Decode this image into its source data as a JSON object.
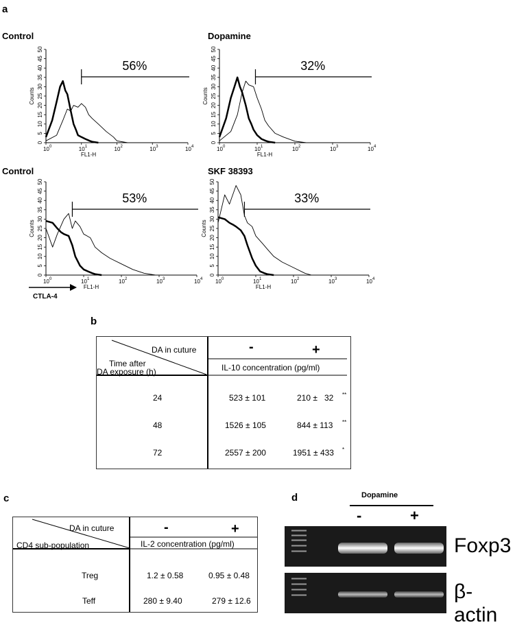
{
  "figure": {
    "panel_a_letter": "a",
    "panel_b_letter": "b",
    "panel_c_letter": "c",
    "panel_d_letter": "d"
  },
  "panel_a": {
    "axis_arrow_label": "CTLA-4",
    "histograms": [
      {
        "title": "Control",
        "percent": "56%",
        "ylabel": "Counts",
        "xlabel": "FL1-H",
        "yticks": [
          "0",
          "5",
          "10",
          "15",
          "20",
          "25",
          "30",
          "35",
          "40",
          "45",
          "50"
        ],
        "xticks": [
          "10",
          "10",
          "10",
          "10",
          "10"
        ],
        "xexps": [
          "0",
          "1",
          "2",
          "3",
          "4"
        ]
      },
      {
        "title": "Dopamine",
        "percent": "32%",
        "ylabel": "Counts",
        "xlabel": "FL1-H",
        "yticks": [
          "0",
          "5",
          "10",
          "15",
          "20",
          "25",
          "30",
          "35",
          "40",
          "45",
          "50"
        ],
        "xticks": [
          "10",
          "10",
          "10",
          "10",
          "10"
        ],
        "xexps": [
          "0",
          "1",
          "2",
          "3",
          "4"
        ]
      },
      {
        "title": "Control",
        "percent": "53%",
        "ylabel": "Counts",
        "xlabel": "FL1-H",
        "yticks": [
          "0",
          "5",
          "10",
          "15",
          "20",
          "25",
          "30",
          "35",
          "40",
          "45",
          "50"
        ],
        "xticks": [
          "10",
          "10",
          "10",
          "10",
          "10"
        ],
        "xexps": [
          "0",
          "1",
          "2",
          "3",
          "4"
        ]
      },
      {
        "title": "SKF 38393",
        "percent": "33%",
        "ylabel": "Counts",
        "xlabel": "FL1-H",
        "yticks": [
          "0",
          "5",
          "10",
          "15",
          "20",
          "25",
          "30",
          "35",
          "40",
          "45",
          "50"
        ],
        "xticks": [
          "10",
          "10",
          "10",
          "10",
          "10"
        ],
        "xexps": [
          "0",
          "1",
          "2",
          "3",
          "4"
        ]
      }
    ]
  },
  "chart_data": [
    {
      "type": "area",
      "title": "Control",
      "xlabel": "FL1-H",
      "ylabel": "Counts",
      "xscale": "log",
      "xlim": [
        1,
        10000
      ],
      "ylim": [
        0,
        50
      ],
      "gate_percent": "56%",
      "series": [
        {
          "name": "",
          "style": "thick",
          "x": [
            1,
            1.5,
            2,
            2.5,
            3,
            3.5,
            4,
            5,
            6,
            7,
            8,
            10,
            13,
            17,
            20,
            30
          ],
          "y": [
            3,
            12,
            22,
            30,
            33,
            28,
            26,
            17,
            10,
            7,
            4,
            3,
            2,
            1,
            0.5,
            0
          ]
        },
        {
          "name": "",
          "style": "thin",
          "x": [
            1,
            2,
            3,
            4,
            5,
            6,
            8,
            10,
            13,
            16,
            20,
            30,
            50,
            80,
            100,
            200
          ],
          "y": [
            1,
            4,
            12,
            18,
            17,
            20,
            19,
            21,
            19,
            15,
            13,
            10,
            6,
            3,
            1,
            0
          ]
        }
      ]
    },
    {
      "type": "area",
      "title": "Dopamine",
      "xlabel": "FL1-H",
      "ylabel": "Counts",
      "xscale": "log",
      "xlim": [
        1,
        10000
      ],
      "ylim": [
        0,
        50
      ],
      "gate_percent": "32%",
      "series": [
        {
          "name": "",
          "style": "thick",
          "x": [
            1,
            1.5,
            2,
            2.5,
            3,
            3.5,
            4,
            5,
            6,
            7,
            8,
            10,
            13,
            17,
            20,
            30
          ],
          "y": [
            3,
            13,
            24,
            30,
            35,
            30,
            27,
            20,
            13,
            10,
            7,
            4,
            2,
            1,
            0.5,
            0
          ]
        },
        {
          "name": "",
          "style": "thin",
          "x": [
            1,
            2,
            3,
            4,
            5,
            6,
            8,
            10,
            13,
            16,
            20,
            30,
            50,
            80,
            100,
            200
          ],
          "y": [
            1,
            6,
            15,
            27,
            33,
            31,
            30,
            24,
            18,
            12,
            9,
            5,
            3,
            1.5,
            0.8,
            0
          ]
        }
      ]
    },
    {
      "type": "area",
      "title": "Control",
      "xlabel": "FL1-H",
      "ylabel": "Counts",
      "xscale": "log",
      "xlim": [
        1,
        10000
      ],
      "ylim": [
        0,
        50
      ],
      "gate_percent": "53%",
      "series": [
        {
          "name": "",
          "style": "thick",
          "x": [
            1,
            1.5,
            2,
            2.5,
            3,
            4,
            5,
            6,
            8,
            10,
            13,
            17,
            20,
            30
          ],
          "y": [
            29,
            28,
            25,
            23,
            22,
            21,
            16,
            10,
            5,
            3,
            2,
            1,
            0.5,
            0
          ]
        },
        {
          "name": "",
          "style": "thin",
          "x": [
            1,
            1.5,
            2,
            3,
            4,
            5,
            6,
            8,
            10,
            15,
            20,
            30,
            50,
            100,
            200,
            400,
            800
          ],
          "y": [
            25,
            15,
            22,
            30,
            33,
            25,
            29,
            26,
            22,
            20,
            15,
            12,
            9,
            6,
            3,
            1,
            0
          ]
        }
      ]
    },
    {
      "type": "area",
      "title": "SKF 38393",
      "xlabel": "FL1-H",
      "ylabel": "Counts",
      "xscale": "log",
      "xlim": [
        1,
        10000
      ],
      "ylim": [
        0,
        50
      ],
      "gate_percent": "33%",
      "series": [
        {
          "name": "",
          "style": "thick",
          "x": [
            1,
            1.5,
            2,
            2.5,
            3,
            4,
            5,
            6,
            8,
            10,
            13,
            17,
            20,
            30
          ],
          "y": [
            31,
            30,
            28,
            27,
            26,
            24,
            21,
            16,
            9,
            5,
            2,
            1,
            0.5,
            0
          ]
        },
        {
          "name": "",
          "style": "thin",
          "x": [
            1,
            1.5,
            2,
            3,
            4,
            5,
            6,
            8,
            10,
            15,
            20,
            30,
            50,
            100,
            200,
            300
          ],
          "y": [
            28,
            43,
            38,
            48,
            43,
            32,
            28,
            26,
            21,
            17,
            14,
            10,
            7,
            4,
            1,
            0
          ]
        }
      ]
    },
    {
      "type": "table",
      "title": "",
      "corner_top": "DA in cuture",
      "corner_bottom_1": "Time after",
      "corner_bottom_2": "DA exposure  (h)",
      "col_headers": [
        "-",
        "+"
      ],
      "subheader": "IL-10 concentration (pg/ml)",
      "rows": [
        {
          "label": "24",
          "minus": "523 ± 101",
          "plus": "210 ±   32",
          "sig": "**"
        },
        {
          "label": "48",
          "minus": "1526 ± 105",
          "plus": "844 ± 113",
          "sig": "**"
        },
        {
          "label": "72",
          "minus": "2557 ± 200",
          "plus": "1951 ± 433",
          "sig": "*"
        }
      ]
    },
    {
      "type": "table",
      "title": "",
      "corner_top": "DA in cuture",
      "corner_bottom": "CD4 sub-population",
      "col_headers": [
        "-",
        "+"
      ],
      "subheader": "IL-2 concentration (pg/ml)",
      "rows": [
        {
          "label": "Treg",
          "minus": "1.2 ± 0.58",
          "plus": "0.95 ± 0.48"
        },
        {
          "label": "Teff",
          "minus": "280 ± 9.40",
          "plus": "279 ± 12.6"
        }
      ]
    }
  ],
  "panel_d": {
    "title": "Dopamine",
    "lanes": [
      "-",
      "+"
    ],
    "bands": [
      "Foxp3",
      "β-actin"
    ]
  }
}
